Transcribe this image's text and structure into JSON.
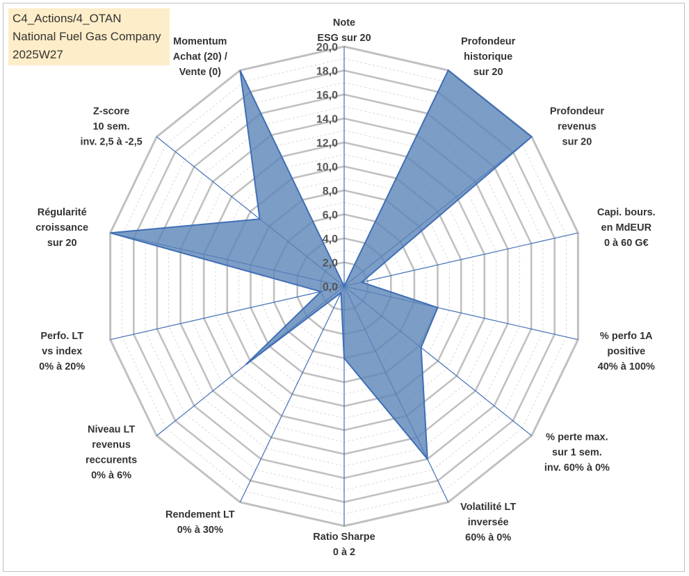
{
  "header": {
    "lines": [
      "C4_Actions/4_OTAN",
      "National Fuel Gas Company",
      "2025W27"
    ]
  },
  "chart_data": {
    "type": "radar",
    "rlim": [
      0,
      20
    ],
    "rticks": [
      "0,0",
      "2,0",
      "4,0",
      "6,0",
      "8,0",
      "10,0",
      "12,0",
      "14,0",
      "16,0",
      "18,0",
      "20,0"
    ],
    "axes": [
      {
        "label": [
          "Note",
          "ESG sur 20"
        ],
        "value": 0
      },
      {
        "label": [
          "Profondeur",
          "historique",
          "sur 20"
        ],
        "value": 20
      },
      {
        "label": [
          "Profondeur",
          "revenus",
          "sur 20"
        ],
        "value": 20
      },
      {
        "label": [
          "Capi. bours.",
          "en MdEUR",
          "0 à 60 G€"
        ],
        "value": 1.5
      },
      {
        "label": [
          "% perfo 1A",
          "positive",
          "40% à 100%"
        ],
        "value": 8
      },
      {
        "label": [
          "% perte max.",
          "sur 1 sem.",
          "inv. 60% à 0%"
        ],
        "value": 8.2
      },
      {
        "label": [
          "Volatilité LT",
          "inversée",
          "60% à 0%"
        ],
        "value": 16
      },
      {
        "label": [
          "Ratio Sharpe",
          "0 à 2"
        ],
        "value": 6
      },
      {
        "label": [
          "Rendement LT",
          "0% à 30%"
        ],
        "value": 0.6
      },
      {
        "label": [
          "Niveau LT",
          "revenus",
          "reccurents",
          "0% à 6%"
        ],
        "value": 10.5
      },
      {
        "label": [
          "Perfo. LT",
          "vs index",
          "0% à 20%"
        ],
        "value": 2
      },
      {
        "label": [
          "Régularité",
          "croissance",
          "sur 20"
        ],
        "value": 20
      },
      {
        "label": [
          "Z-score",
          "10 sem.",
          "inv. 2,5 à -2,5"
        ],
        "value": 9
      },
      {
        "label": [
          "Momentum",
          "Achat (20) /",
          "Vente (0)"
        ],
        "value": 20
      }
    ],
    "colors": {
      "fill": "#5b84b8",
      "line": "#3f6eb5",
      "grid": "#c0c0c0",
      "grid_minor": "#d9d9d9",
      "spoke": "#3f6eb5"
    },
    "grid": true
  }
}
